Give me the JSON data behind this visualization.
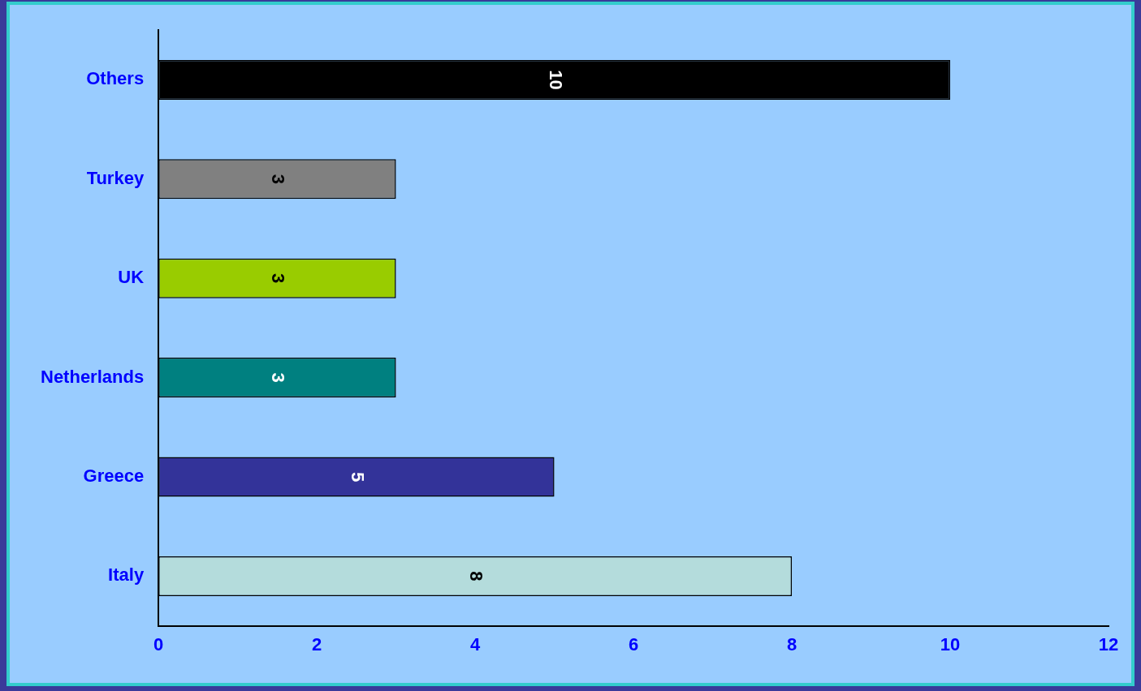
{
  "chart_data": {
    "type": "bar",
    "orientation": "horizontal",
    "categories": [
      "Others",
      "Turkey",
      "UK",
      "Netherlands",
      "Greece",
      "Italy"
    ],
    "values": [
      10,
      3,
      3,
      3,
      5,
      8
    ],
    "colors": [
      "#000000",
      "#808080",
      "#99cc00",
      "#008080",
      "#333399",
      "#b4dcdc"
    ],
    "xlim": [
      0,
      12
    ],
    "xticks": [
      0,
      2,
      4,
      6,
      8,
      10,
      12
    ],
    "grid": false,
    "legend": false,
    "data_labels": true
  }
}
